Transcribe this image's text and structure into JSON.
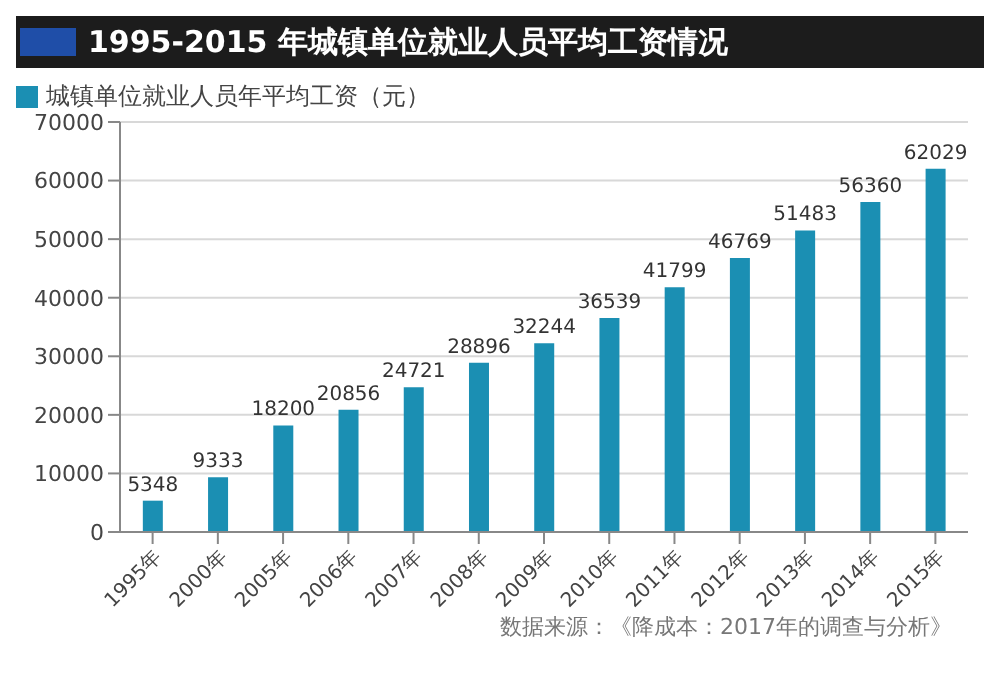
{
  "chart_data": {
    "type": "bar",
    "title": "1995-2015 年城镇单位就业人员平均工资情况",
    "categories": [
      "1995年",
      "2000年",
      "2005年",
      "2006年",
      "2007年",
      "2008年",
      "2009年",
      "2010年",
      "2011年",
      "2012年",
      "2013年",
      "2014年",
      "2015年"
    ],
    "series": [
      {
        "name": "城镇单位就业人员年平均工资（元）",
        "color": "#1b8fb3",
        "values": [
          5348,
          9333,
          18200,
          20856,
          24721,
          28896,
          32244,
          36539,
          41799,
          46769,
          51483,
          56360,
          62029
        ]
      }
    ],
    "ylim": [
      0,
      70000
    ],
    "yticks": [
      0,
      10000,
      20000,
      30000,
      40000,
      50000,
      60000,
      70000
    ],
    "grid": "y",
    "legend": "top left",
    "data_labels": true,
    "annotations": [
      "数据来源：《降成本：2017年的调查与分析》"
    ]
  }
}
